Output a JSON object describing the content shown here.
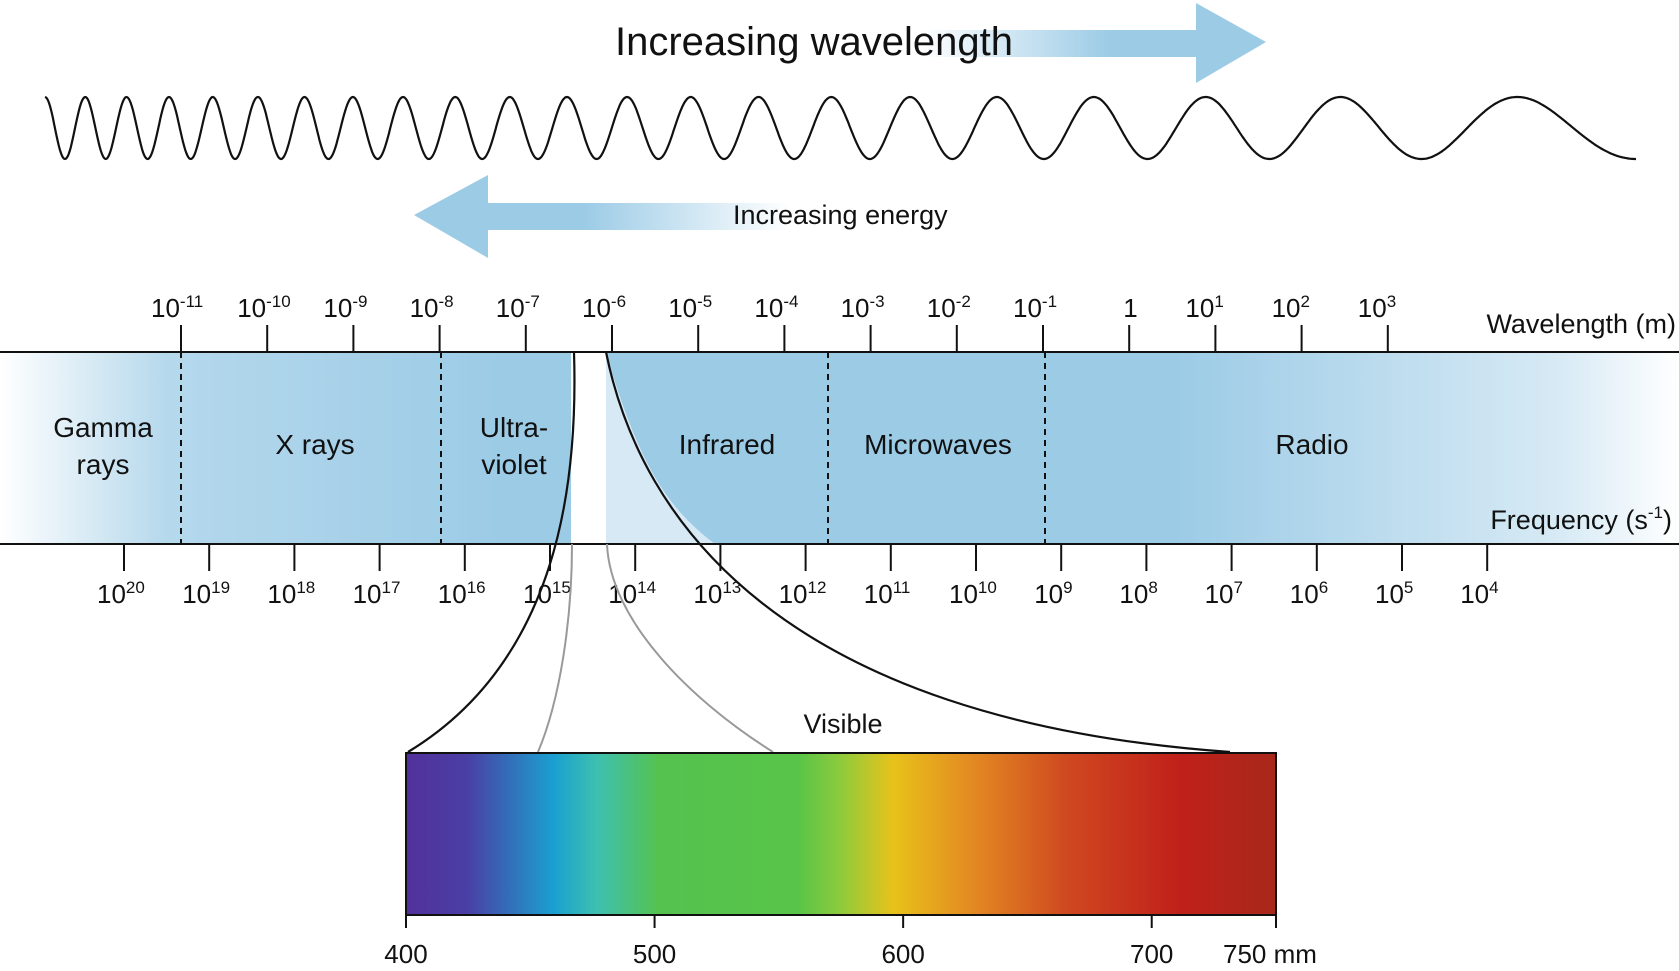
{
  "arrows": {
    "wavelength_label": "Increasing wavelength",
    "energy_label": "Increasing energy",
    "color": "#9ccbe6"
  },
  "spectrum": {
    "band_color": "#9ccbe6",
    "wavelength_axis_label": "Wavelength (m)",
    "frequency_axis_label_base": "Frequency (s",
    "frequency_axis_label_exp": "-1",
    "frequency_axis_label_end": ")",
    "bands": [
      {
        "line1": "Gamma",
        "line2": "rays"
      },
      {
        "line1": "X rays",
        "line2": ""
      },
      {
        "line1": "Ultra-",
        "line2": "violet"
      },
      {
        "line1": "Infrared",
        "line2": ""
      },
      {
        "line1": "Microwaves",
        "line2": ""
      },
      {
        "line1": "Radio",
        "line2": ""
      }
    ],
    "wavelength_ticks": [
      {
        "base": "10",
        "exp": "-11"
      },
      {
        "base": "10",
        "exp": "-10"
      },
      {
        "base": "10",
        "exp": "-9"
      },
      {
        "base": "10",
        "exp": "-8"
      },
      {
        "base": "10",
        "exp": "-7"
      },
      {
        "base": "10",
        "exp": "-6"
      },
      {
        "base": "10",
        "exp": "-5"
      },
      {
        "base": "10",
        "exp": "-4"
      },
      {
        "base": "10",
        "exp": "-3"
      },
      {
        "base": "10",
        "exp": "-2"
      },
      {
        "base": "10",
        "exp": "-1"
      },
      {
        "base": "1",
        "exp": ""
      },
      {
        "base": "10",
        "exp": "1"
      },
      {
        "base": "10",
        "exp": "2"
      },
      {
        "base": "10",
        "exp": "3"
      }
    ],
    "frequency_ticks": [
      {
        "base": "10",
        "exp": "20"
      },
      {
        "base": "10",
        "exp": "19"
      },
      {
        "base": "10",
        "exp": "18"
      },
      {
        "base": "10",
        "exp": "17"
      },
      {
        "base": "10",
        "exp": "16"
      },
      {
        "base": "10",
        "exp": "15"
      },
      {
        "base": "10",
        "exp": "14"
      },
      {
        "base": "10",
        "exp": "13"
      },
      {
        "base": "10",
        "exp": "12"
      },
      {
        "base": "10",
        "exp": "11"
      },
      {
        "base": "10",
        "exp": "10"
      },
      {
        "base": "10",
        "exp": "9"
      },
      {
        "base": "10",
        "exp": "8"
      },
      {
        "base": "10",
        "exp": "7"
      },
      {
        "base": "10",
        "exp": "6"
      },
      {
        "base": "10",
        "exp": "5"
      },
      {
        "base": "10",
        "exp": "4"
      }
    ]
  },
  "visible": {
    "label": "Visible",
    "ticks": [
      "400",
      "500",
      "600",
      "700"
    ],
    "end_tick": "750 mm",
    "gradient_colors": [
      "#53309c",
      "#1aa0d0",
      "#55c250",
      "#7cc940",
      "#e8c21a",
      "#e08020",
      "#c0201a",
      "#a8281a"
    ]
  }
}
